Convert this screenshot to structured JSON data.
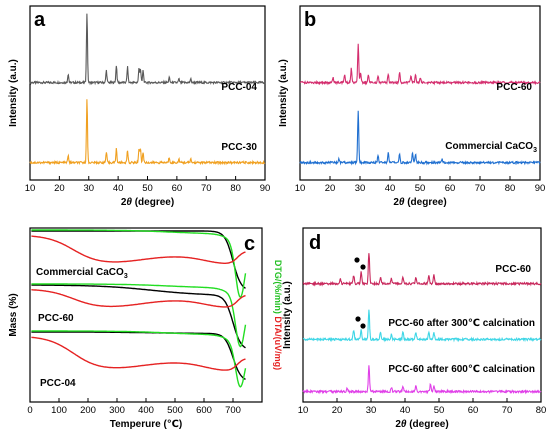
{
  "chart_data": [
    {
      "panel": "a",
      "type": "line",
      "xlabel": "2θ (degree)",
      "ylabel": "Intensity (a.u.)",
      "xlim": [
        10,
        90
      ],
      "xticks": [
        10,
        20,
        30,
        40,
        50,
        60,
        70,
        80,
        90
      ],
      "series": [
        {
          "name": "PCC-04",
          "color": "#595959",
          "offset": 0.56,
          "peaks": [
            [
              23.0,
              0.05
            ],
            [
              29.4,
              0.4
            ],
            [
              36.0,
              0.07
            ],
            [
              39.4,
              0.1
            ],
            [
              43.2,
              0.09
            ],
            [
              47.1,
              0.08
            ],
            [
              47.6,
              0.08
            ],
            [
              48.5,
              0.07
            ],
            [
              57.4,
              0.03
            ],
            [
              60.7,
              0.02
            ],
            [
              64.7,
              0.02
            ]
          ]
        },
        {
          "name": "PCC-30",
          "color": "#f0a020",
          "offset": 0.1,
          "peaks": [
            [
              23.0,
              0.04
            ],
            [
              29.4,
              0.36
            ],
            [
              36.0,
              0.06
            ],
            [
              39.4,
              0.08
            ],
            [
              43.2,
              0.07
            ],
            [
              47.1,
              0.08
            ],
            [
              47.6,
              0.08
            ],
            [
              48.5,
              0.06
            ],
            [
              57.4,
              0.03
            ],
            [
              60.7,
              0.02
            ],
            [
              64.7,
              0.02
            ]
          ]
        }
      ]
    },
    {
      "panel": "b",
      "type": "line",
      "xlabel": "2θ (degree)",
      "ylabel": "Intensity (a.u.)",
      "xlim": [
        10,
        90
      ],
      "xticks": [
        10,
        20,
        30,
        40,
        50,
        60,
        70,
        80,
        90
      ],
      "series": [
        {
          "name": "PCC-60",
          "color": "#d42e6e",
          "offset": 0.56,
          "peaks": [
            [
              21.0,
              0.03
            ],
            [
              24.9,
              0.05
            ],
            [
              27.1,
              0.08
            ],
            [
              29.4,
              0.22
            ],
            [
              30.2,
              0.06
            ],
            [
              32.8,
              0.05
            ],
            [
              36.0,
              0.04
            ],
            [
              39.4,
              0.05
            ],
            [
              43.2,
              0.06
            ],
            [
              47.0,
              0.04
            ],
            [
              48.5,
              0.05
            ],
            [
              50.1,
              0.03
            ]
          ]
        },
        {
          "name": "Commercial CaCO3",
          "color": "#1f6fd0",
          "offset": 0.1,
          "peaks": [
            [
              23.0,
              0.02
            ],
            [
              29.4,
              0.3
            ],
            [
              36.0,
              0.04
            ],
            [
              39.4,
              0.06
            ],
            [
              43.2,
              0.05
            ],
            [
              47.5,
              0.06
            ],
            [
              48.5,
              0.05
            ],
            [
              57.4,
              0.02
            ]
          ]
        }
      ]
    },
    {
      "panel": "c",
      "type": "line",
      "xlabel": "Temperure (℃)",
      "ylabel": "Mass (%)",
      "ylabel_right_green": "DTG/(%/min)",
      "ylabel_right_red": "DTA/(uV/mg)",
      "xlim": [
        0,
        800
      ],
      "xticks": [
        0,
        100,
        200,
        300,
        400,
        500,
        600,
        700
      ],
      "groups": [
        {
          "name": "Commercial CaCO3"
        },
        {
          "name": "PCC-60"
        },
        {
          "name": "PCC-04"
        }
      ]
    },
    {
      "panel": "d",
      "type": "line",
      "xlabel": "2θ (degree)",
      "ylabel": "Intensity (a.u.)",
      "xlim": [
        10,
        80
      ],
      "xticks": [
        10,
        20,
        30,
        40,
        50,
        60,
        70,
        80
      ],
      "series": [
        {
          "name": "PCC-60",
          "color": "#c8285c",
          "offset": 0.68,
          "peaks": [
            [
              21.0,
              0.03
            ],
            [
              24.9,
              0.05
            ],
            [
              27.1,
              0.07
            ],
            [
              29.4,
              0.18
            ],
            [
              32.8,
              0.04
            ],
            [
              36.0,
              0.03
            ],
            [
              39.4,
              0.04
            ],
            [
              43.2,
              0.04
            ],
            [
              47.0,
              0.05
            ],
            [
              48.5,
              0.05
            ]
          ]
        },
        {
          "name": "PCC-60 after 300℃ calcination",
          "color": "#3fd6e6",
          "offset": 0.36,
          "peaks": [
            [
              24.9,
              0.05
            ],
            [
              27.1,
              0.06
            ],
            [
              29.4,
              0.17
            ],
            [
              32.8,
              0.04
            ],
            [
              36.0,
              0.03
            ],
            [
              39.4,
              0.04
            ],
            [
              43.2,
              0.04
            ],
            [
              47.0,
              0.04
            ],
            [
              48.5,
              0.04
            ]
          ]
        },
        {
          "name": "PCC-60 after 600℃ calcination",
          "color": "#e040e8",
          "offset": 0.06,
          "peaks": [
            [
              23.0,
              0.02
            ],
            [
              29.4,
              0.15
            ],
            [
              36.0,
              0.02
            ],
            [
              39.4,
              0.03
            ],
            [
              43.2,
              0.03
            ],
            [
              47.5,
              0.04
            ],
            [
              48.5,
              0.03
            ]
          ]
        }
      ]
    }
  ]
}
